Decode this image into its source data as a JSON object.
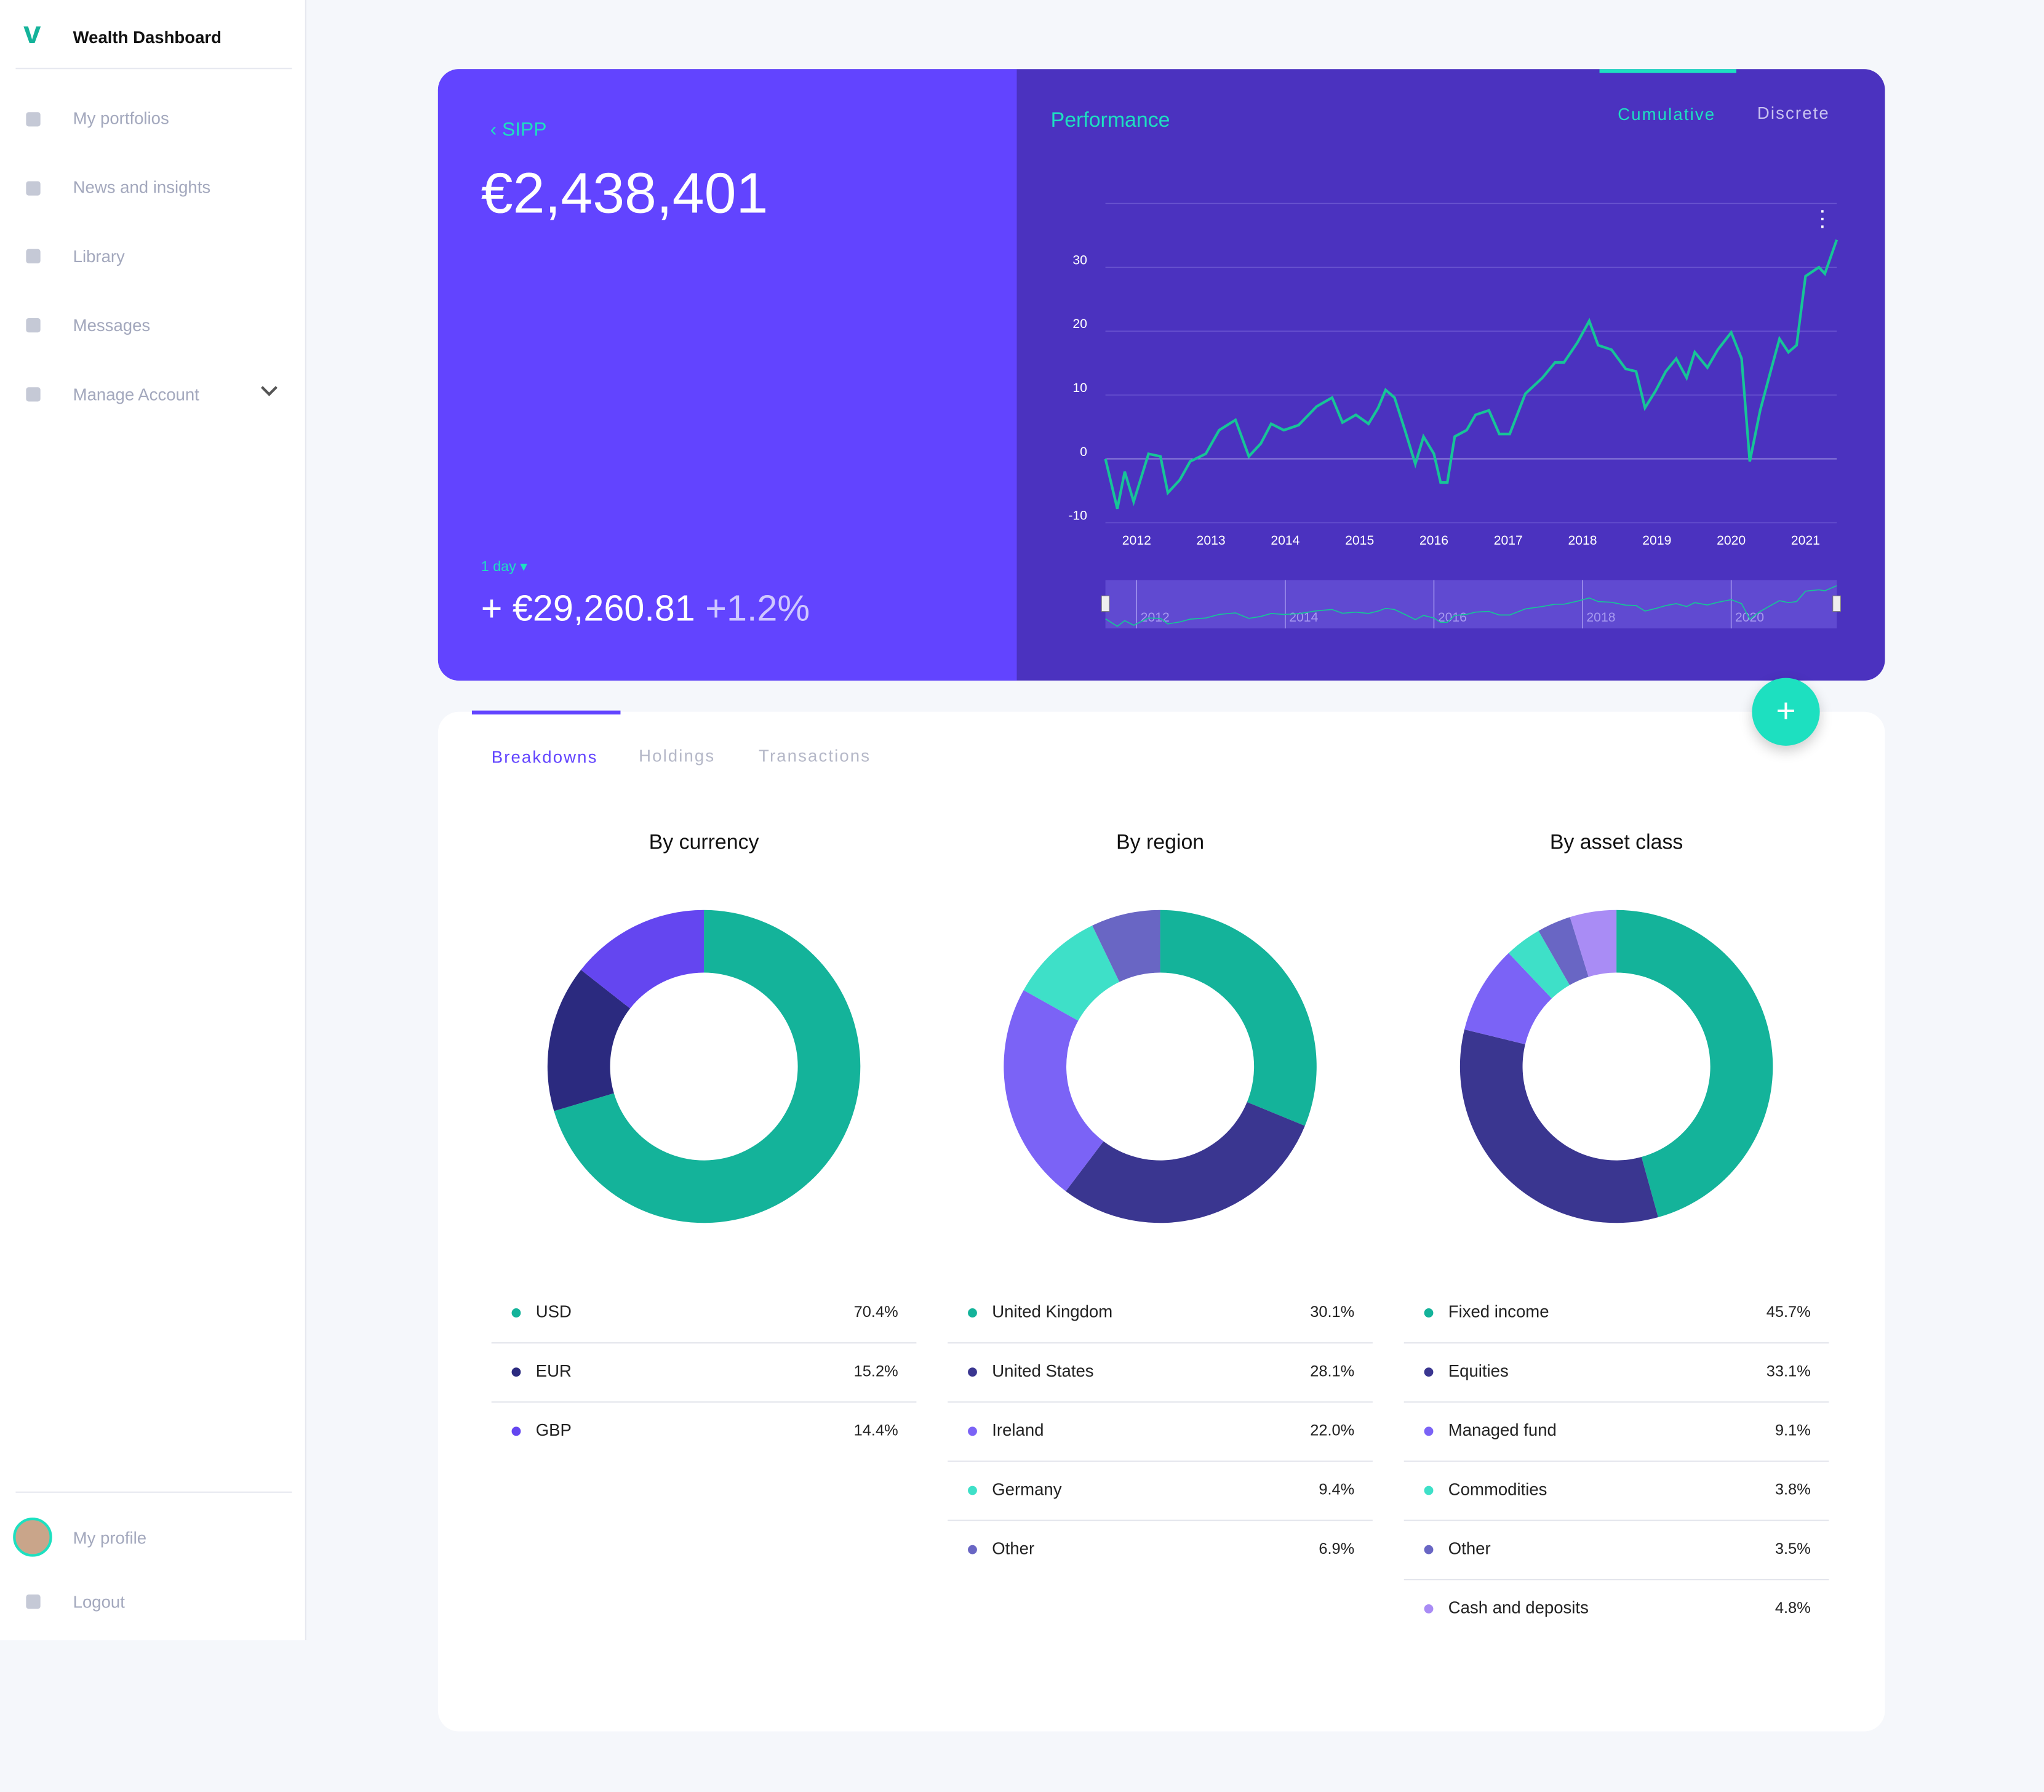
{
  "sidebar": {
    "brand": "Wealth Dashboard",
    "nav": [
      "My portfolios",
      "News and insights",
      "Library",
      "Messages",
      "Manage Account"
    ],
    "profile": "My profile",
    "logout": "Logout"
  },
  "portfolio": {
    "back": "SIPP",
    "value": "€2,438,401",
    "period": "1 day",
    "change": "+ €29,260.81",
    "change_pct": "+1.2%"
  },
  "performance_tabs": [
    "Cumulative",
    "Discrete"
  ],
  "tabs": [
    "Breakdowns",
    "Holdings",
    "Transactions"
  ],
  "chart_data": [
    {
      "type": "line",
      "title": "Performance",
      "color": "#17c497",
      "grid": true,
      "x": [
        2011.58,
        2011.74,
        2011.84,
        2011.96,
        2012.16,
        2012.32,
        2012.42,
        2012.58,
        2012.72,
        2012.93,
        2013.11,
        2013.33,
        2013.51,
        2013.67,
        2013.81,
        2013.98,
        2014.18,
        2014.42,
        2014.63,
        2014.77,
        2014.95,
        2015.12,
        2015.25,
        2015.35,
        2015.47,
        2015.61,
        2015.75,
        2015.86,
        2016.0,
        2016.09,
        2016.18,
        2016.28,
        2016.44,
        2016.56,
        2016.74,
        2016.88,
        2017.02,
        2017.23,
        2017.46,
        2017.63,
        2017.75,
        2017.93,
        2018.09,
        2018.21,
        2018.39,
        2018.58,
        2018.72,
        2018.84,
        2018.98,
        2019.12,
        2019.26,
        2019.4,
        2019.51,
        2019.68,
        2019.82,
        2020.0,
        2020.14,
        2020.25,
        2020.39,
        2020.53,
        2020.65,
        2020.77,
        2020.88,
        2021.0,
        2021.18,
        2021.26,
        2021.42
      ],
      "values": [
        0,
        -7.8,
        -2,
        -6.7,
        0.8,
        0.4,
        -5.3,
        -3.3,
        -0.4,
        0.8,
        4.5,
        6.1,
        0.4,
        2.4,
        5.5,
        4.5,
        5.3,
        8.2,
        9.6,
        5.7,
        6.9,
        5.5,
        8,
        10.8,
        9.6,
        4.5,
        -0.8,
        3.5,
        0.8,
        -3.7,
        -3.7,
        3.5,
        4.5,
        6.9,
        7.6,
        3.9,
        3.9,
        10.2,
        12.7,
        15.1,
        15.1,
        18.2,
        21.6,
        17.8,
        17.1,
        14.1,
        13.7,
        8,
        10.6,
        13.7,
        15.7,
        12.7,
        16.7,
        14.3,
        17.1,
        19.8,
        15.7,
        -0.4,
        7.6,
        13.7,
        18.8,
        16.7,
        17.8,
        28.6,
        30,
        29,
        34.3
      ],
      "xlim": [
        2011.58,
        2021.42
      ],
      "ylim": [
        -10,
        40
      ],
      "xticks": [
        2012,
        2013,
        2014,
        2015,
        2016,
        2017,
        2018,
        2019,
        2020,
        2021
      ],
      "yticks": [
        -10,
        0,
        10,
        20,
        30
      ]
    },
    {
      "type": "pie",
      "title": "By currency",
      "categories": [
        "USD",
        "EUR",
        "GBP"
      ],
      "values": [
        70.4,
        15.2,
        14.4
      ],
      "value_labels": [
        "70.4%",
        "15.2%",
        "14.4%"
      ],
      "colors": [
        "#14b39a",
        "#2b2a7f",
        "#6446f0"
      ]
    },
    {
      "type": "pie",
      "title": "By region",
      "categories": [
        "United Kingdom",
        "United States",
        "Ireland",
        "Germany",
        "Other"
      ],
      "values": [
        30.1,
        28.1,
        22.0,
        9.4,
        6.9
      ],
      "value_labels": [
        "30.1%",
        "28.1%",
        "22.0%",
        "9.4%",
        "6.9%"
      ],
      "colors": [
        "#14b39a",
        "#3a3690",
        "#7b63f6",
        "#3ee0c8",
        "#6966c4"
      ]
    },
    {
      "type": "pie",
      "title": "By asset class",
      "categories": [
        "Fixed income",
        "Equities",
        "Managed fund",
        "Commodities",
        "Other",
        "Cash and deposits"
      ],
      "values": [
        45.7,
        33.1,
        9.1,
        3.8,
        3.5,
        4.8
      ],
      "value_labels": [
        "45.7%",
        "33.1%",
        "9.1%",
        "3.8%",
        "3.5%",
        "4.8%"
      ],
      "colors": [
        "#14b39a",
        "#3a3690",
        "#7b63f6",
        "#3ee0c8",
        "#6966c4",
        "#a98cf5"
      ]
    }
  ]
}
